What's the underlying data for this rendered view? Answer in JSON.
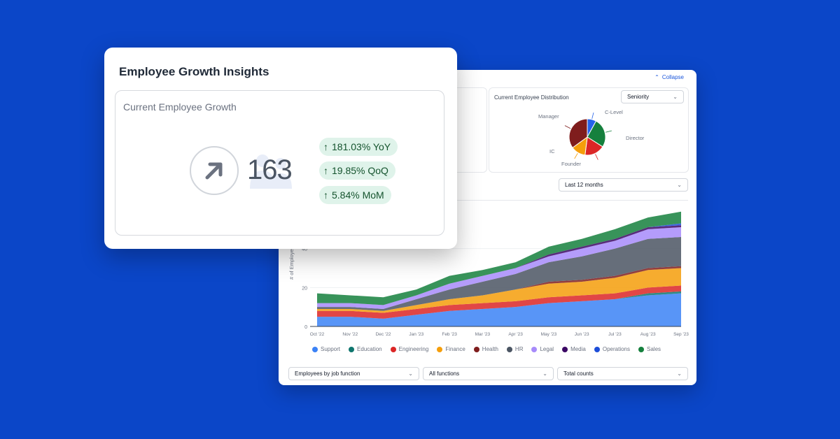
{
  "dashboard": {
    "collapse_label": "Collapse",
    "distribution": {
      "title": "Current Employee Distribution",
      "seniority_select": "Seniority",
      "pie": [
        {
          "label": "C-Level",
          "value": 8,
          "color": "#2563eb"
        },
        {
          "label": "Director",
          "value": 26,
          "color": "#15803d"
        },
        {
          "label": "Founder",
          "value": 18,
          "color": "#dc2626"
        },
        {
          "label": "IC",
          "value": 13,
          "color": "#f59e0b"
        },
        {
          "label": "Manager",
          "value": 35,
          "color": "#7f1d1d"
        }
      ]
    },
    "period_select": "Last 12 months",
    "function_select": "Employees by job function",
    "all_functions_select": "All functions",
    "total_counts_select": "Total counts"
  },
  "chart_data": {
    "type": "area",
    "ylabel": "# of Employees",
    "ylim": [
      0,
      60
    ],
    "yticks": [
      0,
      20,
      40
    ],
    "categories": [
      "Oct '22",
      "Nov '22",
      "Dec '22",
      "Jan '23",
      "Feb '23",
      "Mar '23",
      "Apr '23",
      "May '23",
      "Jun '23",
      "Jul '23",
      "Aug '23",
      "Sep '23"
    ],
    "series": [
      {
        "name": "Support",
        "color": "#3b82f6",
        "values": [
          5,
          5,
          4,
          6,
          8,
          9,
          10,
          12,
          13,
          14,
          16,
          17
        ]
      },
      {
        "name": "Education",
        "color": "#0f766e",
        "values": [
          0,
          0,
          0,
          0,
          0,
          0,
          0,
          0,
          0,
          0,
          1,
          1
        ]
      },
      {
        "name": "Engineering",
        "color": "#dc2626",
        "values": [
          3,
          3,
          3,
          3,
          3,
          3,
          3,
          3,
          3,
          3,
          3,
          3
        ]
      },
      {
        "name": "Finance",
        "color": "#f59e0b",
        "values": [
          1,
          1,
          1,
          2,
          3,
          4,
          6,
          7,
          7,
          8,
          9,
          9
        ]
      },
      {
        "name": "Health",
        "color": "#7f1d1d",
        "values": [
          0,
          0,
          0,
          0,
          0,
          0,
          0,
          1,
          1,
          1,
          1,
          1
        ]
      },
      {
        "name": "HR",
        "color": "#4b5563",
        "values": [
          1,
          1,
          1,
          3,
          5,
          7,
          8,
          10,
          12,
          14,
          15,
          15
        ]
      },
      {
        "name": "Legal",
        "color": "#a78bfa",
        "values": [
          2,
          2,
          2,
          2,
          3,
          3,
          3,
          3,
          4,
          4,
          5,
          5
        ]
      },
      {
        "name": "Media",
        "color": "#3b0764",
        "values": [
          0,
          0,
          0,
          0,
          0,
          0,
          0,
          1,
          1,
          1,
          1,
          1
        ]
      },
      {
        "name": "Operations",
        "color": "#1d4ed8",
        "values": [
          0,
          0,
          0,
          0,
          0,
          0,
          0,
          0,
          0,
          0,
          0,
          1
        ]
      },
      {
        "name": "Sales",
        "color": "#15803d",
        "values": [
          5,
          4,
          4,
          3,
          4,
          3,
          3,
          4,
          4,
          5,
          5,
          6
        ]
      }
    ]
  },
  "insights": {
    "title": "Employee Growth Insights",
    "subtitle": "Current Employee Growth",
    "total": "163",
    "yoy": "181.03% YoY",
    "qoq": "19.85% QoQ",
    "mom": "5.84% MoM",
    "accent_color": "#dff3ea"
  }
}
